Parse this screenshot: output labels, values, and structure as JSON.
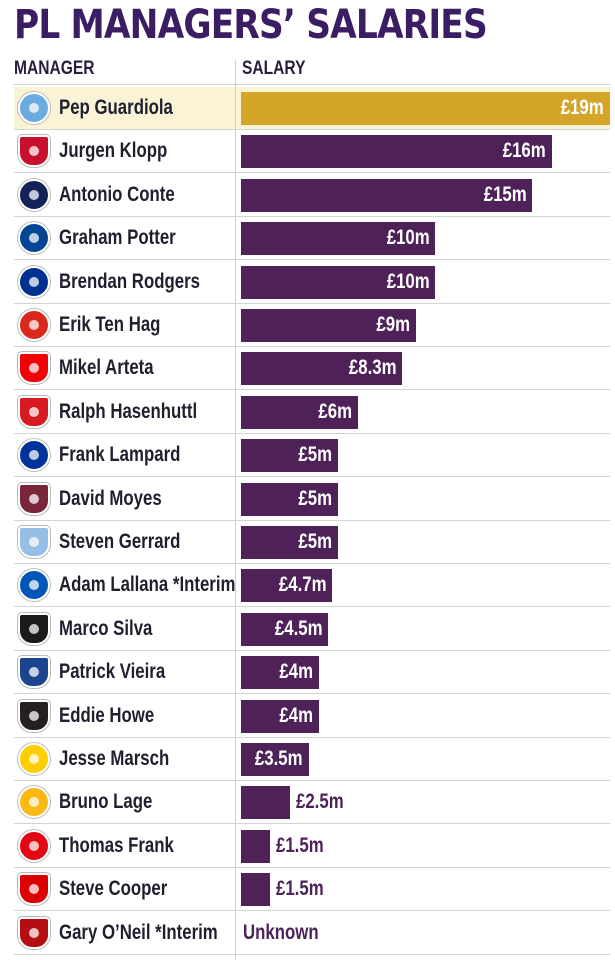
{
  "chart_data": {
    "type": "bar",
    "orientation": "horizontal",
    "title": "PL MANAGERS’ SALARIES",
    "column_headers": {
      "manager": "MANAGER",
      "salary": "SALARY"
    },
    "unit": "£m",
    "xlim": [
      0,
      19
    ],
    "colors": {
      "bar": "#4e2258",
      "highlight_bar": "#d4a529",
      "highlight_row": "#fbf3d6",
      "title": "#3b1d63"
    },
    "rows": [
      {
        "manager": "Pep Guardiola",
        "value": 19,
        "label": "£19m",
        "highlight": true,
        "crest_icon": "man-city-crest-icon",
        "crest_color": "#6cabdd"
      },
      {
        "manager": "Jurgen Klopp",
        "value": 16,
        "label": "£16m",
        "crest_icon": "liverpool-crest-icon",
        "crest_color": "#c8102e"
      },
      {
        "manager": "Antonio Conte",
        "value": 15,
        "label": "£15m",
        "crest_icon": "tottenham-crest-icon",
        "crest_color": "#132257"
      },
      {
        "manager": "Graham Potter",
        "value": 10,
        "label": "£10m",
        "crest_icon": "chelsea-crest-icon",
        "crest_color": "#034694"
      },
      {
        "manager": "Brendan Rodgers",
        "value": 10,
        "label": "£10m",
        "crest_icon": "leicester-crest-icon",
        "crest_color": "#003090"
      },
      {
        "manager": "Erik Ten Hag",
        "value": 9,
        "label": "£9m",
        "crest_icon": "man-united-crest-icon",
        "crest_color": "#da291c"
      },
      {
        "manager": "Mikel Arteta",
        "value": 8.3,
        "label": "£8.3m",
        "crest_icon": "arsenal-crest-icon",
        "crest_color": "#ef0107"
      },
      {
        "manager": "Ralph Hasenhuttl",
        "value": 6,
        "label": "£6m",
        "crest_icon": "southampton-crest-icon",
        "crest_color": "#d71920"
      },
      {
        "manager": "Frank Lampard",
        "value": 5,
        "label": "£5m",
        "crest_icon": "everton-crest-icon",
        "crest_color": "#003399"
      },
      {
        "manager": "David Moyes",
        "value": 5,
        "label": "£5m",
        "crest_icon": "west-ham-crest-icon",
        "crest_color": "#7a263a"
      },
      {
        "manager": "Steven Gerrard",
        "value": 5,
        "label": "£5m",
        "crest_icon": "aston-villa-crest-icon",
        "crest_color": "#95bfe5"
      },
      {
        "manager": "Adam Lallana *Interim",
        "value": 4.7,
        "label": "£4.7m",
        "crest_icon": "brighton-crest-icon",
        "crest_color": "#0057b8"
      },
      {
        "manager": "Marco Silva",
        "value": 4.5,
        "label": "£4.5m",
        "crest_icon": "fulham-crest-icon",
        "crest_color": "#1a1a1a"
      },
      {
        "manager": "Patrick Vieira",
        "value": 4,
        "label": "£4m",
        "crest_icon": "crystal-palace-crest-icon",
        "crest_color": "#1b458f"
      },
      {
        "manager": "Eddie Howe",
        "value": 4,
        "label": "£4m",
        "crest_icon": "newcastle-crest-icon",
        "crest_color": "#241f20"
      },
      {
        "manager": "Jesse Marsch",
        "value": 3.5,
        "label": "£3.5m",
        "crest_icon": "leeds-crest-icon",
        "crest_color": "#ffcd00"
      },
      {
        "manager": "Bruno Lage",
        "value": 2.5,
        "label": "£2.5m",
        "label_outside": true,
        "crest_icon": "wolves-crest-icon",
        "crest_color": "#fdb913"
      },
      {
        "manager": "Thomas Frank",
        "value": 1.5,
        "label": "£1.5m",
        "label_outside": true,
        "crest_icon": "brentford-crest-icon",
        "crest_color": "#e30613"
      },
      {
        "manager": "Steve Cooper",
        "value": 1.5,
        "label": "£1.5m",
        "label_outside": true,
        "crest_icon": "nottingham-forest-crest-icon",
        "crest_color": "#dd0000"
      },
      {
        "manager": "Gary O’Neil *Interim",
        "value": null,
        "label": "Unknown",
        "crest_icon": "bournemouth-crest-icon",
        "crest_color": "#b50e12"
      }
    ]
  }
}
